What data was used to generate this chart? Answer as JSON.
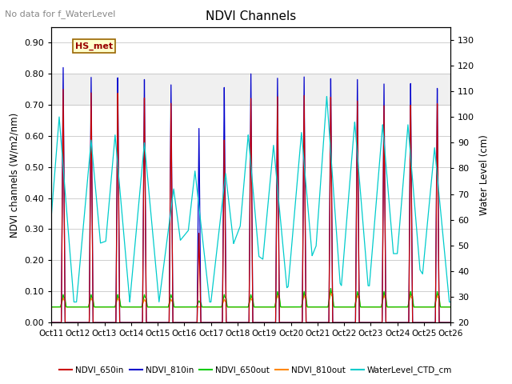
{
  "title": "NDVI Channels",
  "no_data_text": "No data for f_WaterLevel",
  "ylabel_left": "NDVI channels (W/m2/nm)",
  "ylabel_right": "Water Level (cm)",
  "ylim_left": [
    0.0,
    0.95
  ],
  "ylim_right": [
    20,
    135
  ],
  "yticks_left": [
    0.0,
    0.1,
    0.2,
    0.3,
    0.4,
    0.5,
    0.6,
    0.7,
    0.8,
    0.9
  ],
  "yticks_right": [
    20,
    30,
    40,
    50,
    60,
    70,
    80,
    90,
    100,
    110,
    120,
    130
  ],
  "xtick_labels": [
    "Oct 11",
    "Oct 12",
    "Oct 13",
    "Oct 14",
    "Oct 15",
    "Oct 16",
    "Oct 17",
    "Oct 18",
    "Oct 19",
    "Oct 20",
    "Oct 21",
    "Oct 22",
    "Oct 23",
    "Oct 24",
    "Oct 25",
    "Oct 26"
  ],
  "box_label": "HS_met",
  "colors": {
    "NDVI_650in": "#cc0000",
    "NDVI_810in": "#0000cc",
    "NDVI_650out": "#00cc00",
    "NDVI_810out": "#ff8800",
    "WaterLevel_CTD_cm": "#00cccc"
  },
  "shaded_region": [
    0.7,
    0.8
  ],
  "peak_650in": [
    0.75,
    0.74,
    0.74,
    0.73,
    0.71,
    0.29,
    0.59,
    0.73,
    0.73,
    0.73,
    0.73,
    0.72,
    0.7,
    0.7,
    0.71
  ],
  "peak_810in": [
    0.82,
    0.79,
    0.79,
    0.79,
    0.77,
    0.63,
    0.76,
    0.81,
    0.79,
    0.79,
    0.79,
    0.79,
    0.77,
    0.77,
    0.76
  ],
  "peak_650out": [
    0.09,
    0.09,
    0.09,
    0.09,
    0.09,
    0.07,
    0.09,
    0.09,
    0.1,
    0.1,
    0.11,
    0.1,
    0.1,
    0.1,
    0.1
  ],
  "peak_810out": [
    0.08,
    0.08,
    0.08,
    0.075,
    0.075,
    0.05,
    0.075,
    0.08,
    0.09,
    0.09,
    0.1,
    0.09,
    0.09,
    0.09,
    0.09
  ],
  "wl_peak": [
    100,
    91,
    93,
    90,
    72,
    79,
    78,
    93,
    89,
    94,
    108,
    98,
    97,
    97,
    88
  ],
  "wl_base": 28,
  "peak_offset": [
    0.45,
    0.5,
    0.5,
    0.5,
    0.5,
    0.55,
    0.5,
    0.5,
    0.5,
    0.5,
    0.5,
    0.5,
    0.5,
    0.5,
    0.5
  ],
  "wl_offset": [
    0.3,
    0.5,
    0.4,
    0.5,
    0.6,
    0.4,
    0.55,
    0.4,
    0.35,
    0.4,
    0.35,
    0.4,
    0.45,
    0.4,
    0.4
  ]
}
